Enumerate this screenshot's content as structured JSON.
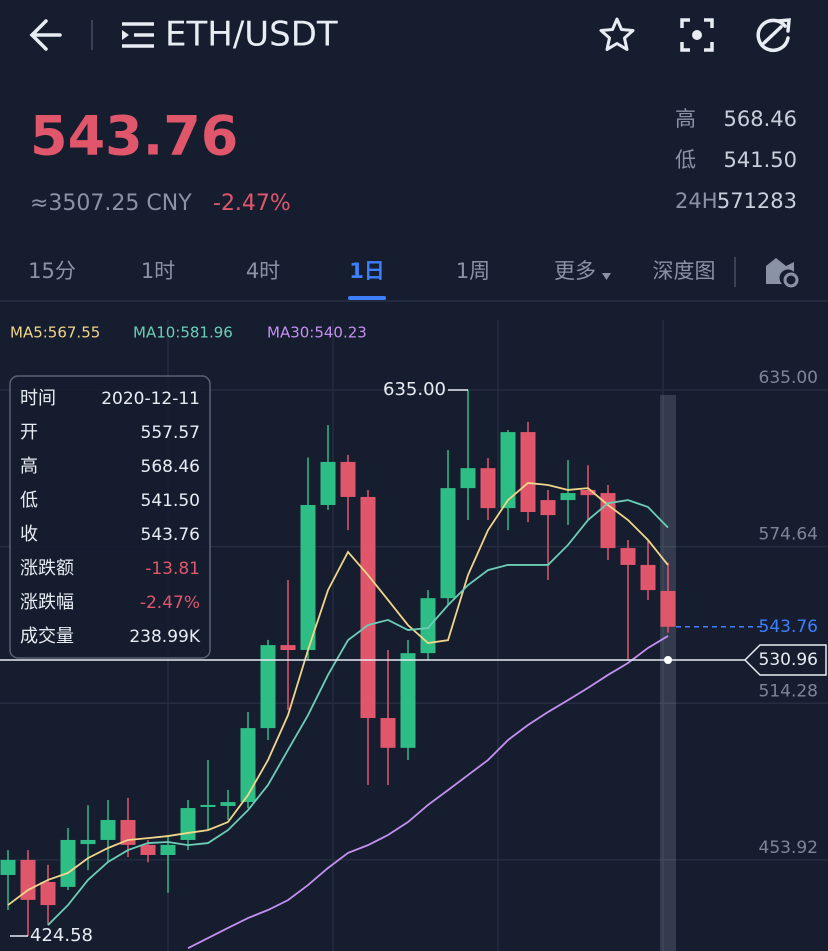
{
  "header": {
    "title": "ETH/USDT"
  },
  "ticker": {
    "price": "543.76",
    "cny": "≈3507.25 CNY",
    "change": "-2.47%",
    "stats": [
      {
        "label": "高",
        "value": "568.46"
      },
      {
        "label": "低",
        "value": "541.50"
      },
      {
        "label": "24H",
        "value": "571283"
      }
    ]
  },
  "tabs": {
    "items": [
      "15分",
      "1时",
      "4时",
      "1日",
      "1周",
      "更多",
      "深度图"
    ],
    "active": 3
  },
  "tooltip": {
    "rows": [
      [
        "时间",
        "2020-12-11"
      ],
      [
        "开",
        "557.57"
      ],
      [
        "高",
        "568.46"
      ],
      [
        "低",
        "541.50"
      ],
      [
        "收",
        "543.76"
      ],
      [
        "涨跌额",
        "-13.81"
      ],
      [
        "涨跌幅",
        "-2.47%"
      ],
      [
        "成交量",
        "238.99K"
      ]
    ]
  },
  "chart_data": {
    "type": "candlestick",
    "up_color": "#2ebd85",
    "down_color": "#e0566b",
    "grid": true,
    "ylim": [
      418.8,
      662.0
    ],
    "yticks": [
      {
        "value": 635,
        "label": "635.00"
      },
      {
        "value": 574.64,
        "label": "574.64"
      },
      {
        "value": 514.28,
        "label": "514.28"
      },
      {
        "value": 453.92,
        "label": "453.92"
      }
    ],
    "open": [
      448.1,
      453.9,
      445.4,
      443.5,
      460.0,
      461.6,
      469.3,
      459.7,
      455.8,
      461.6,
      474.3,
      474.7,
      476.2,
      504.7,
      536.7,
      534.8,
      590.7,
      607.3,
      593.8,
      508.6,
      497.1,
      533.6,
      554.8,
      597.2,
      604.9,
      589.5,
      618.8,
      592.6,
      592.6,
      596.5,
      595.3,
      574.1,
      567.6,
      557.57
    ],
    "high": [
      457.7,
      457.7,
      452.0,
      466.2,
      475.0,
      477.0,
      477.8,
      461.6,
      463.5,
      477.0,
      492.4,
      480.9,
      510.9,
      538.7,
      561.8,
      609.0,
      621.5,
      610.0,
      596.5,
      534.8,
      538.7,
      557.9,
      611.9,
      635.0,
      608.8,
      619.6,
      622.7,
      596.5,
      608.0,
      606.0,
      598.4,
      577.2,
      577.2,
      568.46
    ],
    "low": [
      434.6,
      424.58,
      428.8,
      442.3,
      450.0,
      453.0,
      455.0,
      453.0,
      441.2,
      457.7,
      465.4,
      469.3,
      473.9,
      500.1,
      511.7,
      531.0,
      588.8,
      581.0,
      482.8,
      482.8,
      492.4,
      531.0,
      552.0,
      584.9,
      584.9,
      581.0,
      584.1,
      561.8,
      583.0,
      584.9,
      569.5,
      531.0,
      554.1,
      541.5
    ],
    "close": [
      453.9,
      438.5,
      436.5,
      461.6,
      461.6,
      469.3,
      459.7,
      455.8,
      459.7,
      473.9,
      475.1,
      476.2,
      504.7,
      536.7,
      534.8,
      590.7,
      607.3,
      593.8,
      508.6,
      497.1,
      533.6,
      554.8,
      597.2,
      604.9,
      589.5,
      618.8,
      588.0,
      586.8,
      595.3,
      594.5,
      574.1,
      567.6,
      557.9,
      543.76
    ],
    "series": [
      {
        "name": "MA5:567.55",
        "color": "#f0d68a",
        "values": [
          436.5,
          442.3,
          446.2,
          448.9,
          454.6,
          458.5,
          461.6,
          462.3,
          463.1,
          464.3,
          465.4,
          468.5,
          478.9,
          492.4,
          509.7,
          534.8,
          557.9,
          572.6,
          563.7,
          554.1,
          544.4,
          537.5,
          538.6,
          563.7,
          581.0,
          592.6,
          599.2,
          598.4,
          596.5,
          597.2,
          590.7,
          584.9,
          577.2,
          567.55
        ]
      },
      {
        "name": "MA10:581.96",
        "color": "#6ccdb6",
        "values": [
          null,
          null,
          428.8,
          436.5,
          446.2,
          453.1,
          457.7,
          460.4,
          460.8,
          459.6,
          460.4,
          465.4,
          473.1,
          482.8,
          496.3,
          509.7,
          525.2,
          538.6,
          544.4,
          546.4,
          542.5,
          543.3,
          552.1,
          559.8,
          565.6,
          567.6,
          567.6,
          567.6,
          575.3,
          584.9,
          591.4,
          592.6,
          589.9,
          581.96
        ]
      },
      {
        "name": "MA30:540.23",
        "color": "#c490f0",
        "values": [
          null,
          null,
          null,
          null,
          null,
          null,
          null,
          null,
          null,
          419.9,
          423.8,
          427.7,
          431.5,
          434.6,
          438.4,
          444.2,
          450.8,
          456.6,
          459.6,
          463.5,
          468.5,
          475.1,
          480.8,
          486.6,
          492.4,
          500.1,
          505.9,
          510.9,
          515.5,
          520.2,
          525.2,
          529.8,
          535.6,
          540.23
        ]
      }
    ],
    "max_label": {
      "text": "635.00",
      "value": 635
    },
    "min_label": {
      "text": "424.58",
      "value": 424.58
    },
    "last_price": {
      "text": "543.76",
      "value": 543.76
    },
    "crosshair": {
      "text": "530.96",
      "value": 530.96
    }
  }
}
